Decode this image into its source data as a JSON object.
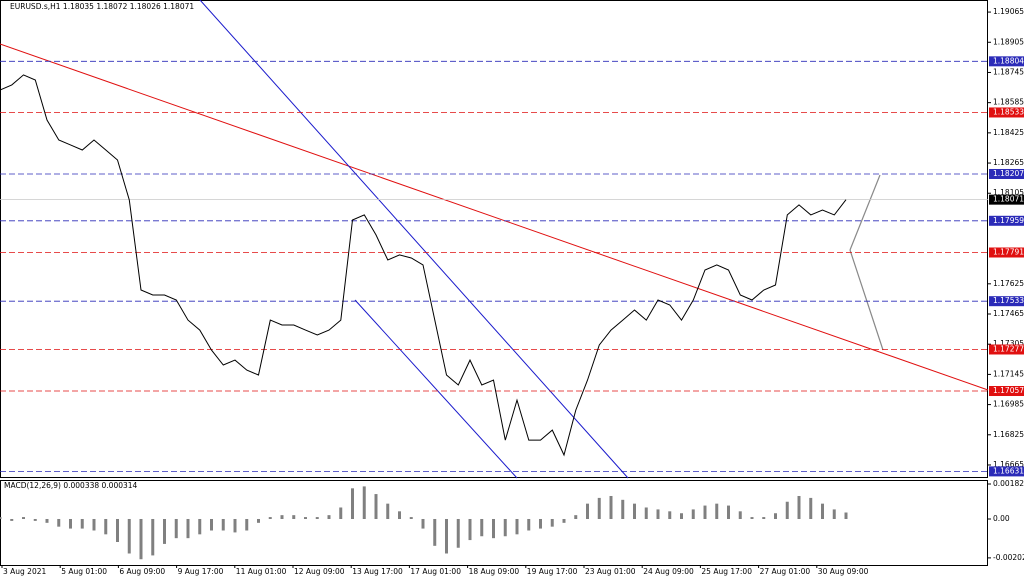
{
  "chart_data": [
    {
      "type": "line",
      "title": "EURUSD.s,H1 1.18035 1.18072 1.18026 1.18071",
      "x_labels": [
        "3 Aug 2021",
        "5 Aug 01:00",
        "6 Aug 09:00",
        "9 Aug 17:00",
        "11 Aug 01:00",
        "12 Aug 09:00",
        "13 Aug 17:00",
        "17 Aug 01:00",
        "18 Aug 09:00",
        "19 Aug 17:00",
        "23 Aug 01:00",
        "24 Aug 09:00",
        "25 Aug 17:00",
        "27 Aug 01:00",
        "30 Aug 09:00"
      ],
      "series": [
        {
          "color": "#000000",
          "values": [
            1.18652,
            1.18679,
            1.18732,
            1.18705,
            1.18493,
            1.18387,
            1.18361,
            1.18334,
            1.18387,
            1.18334,
            1.18281,
            1.18069,
            1.17592,
            1.17566,
            1.17566,
            1.17539,
            1.17433,
            1.1738,
            1.17274,
            1.17195,
            1.17221,
            1.17168,
            1.17142,
            1.17433,
            1.17407,
            1.17407,
            1.1738,
            1.17354,
            1.1738,
            1.17433,
            1.17963,
            1.1799,
            1.17884,
            1.17751,
            1.17778,
            1.17762,
            1.17725,
            1.17433,
            1.17142,
            1.17089,
            1.17221,
            1.17089,
            1.17115,
            1.16797,
            1.17009,
            1.16797,
            1.16797,
            1.1685,
            1.16718,
            1.16956,
            1.17115,
            1.17301,
            1.1738,
            1.17433,
            1.17486,
            1.17433,
            1.17539,
            1.17513,
            1.17433,
            1.17539,
            1.17698,
            1.17725,
            1.17698,
            1.17566,
            1.17539,
            1.17592,
            1.17619,
            1.1799,
            1.18043,
            1.1799,
            1.18016,
            1.1799,
            1.18071
          ]
        }
      ],
      "ylim": [
        1.16596,
        1.19129
      ],
      "yticks": [
        1.19065,
        1.18905,
        1.18745,
        1.18585,
        1.18425,
        1.18265,
        1.18105,
        1.17625,
        1.17465,
        1.17305,
        1.17145,
        1.16985,
        1.16825,
        1.16665
      ],
      "levels": [
        {
          "value": 1.18804,
          "color": "#2b2bb8"
        },
        {
          "value": 1.18533,
          "color": "#e01010"
        },
        {
          "value": 1.18207,
          "color": "#2b2bb8"
        },
        {
          "value": 1.18071,
          "color": "#000000"
        },
        {
          "value": 1.17959,
          "color": "#2b2bb8"
        },
        {
          "value": 1.17791,
          "color": "#e01010"
        },
        {
          "value": 1.17533,
          "color": "#2b2bb8"
        },
        {
          "value": 1.17277,
          "color": "#e01010"
        },
        {
          "value": 1.17057,
          "color": "#e01010"
        },
        {
          "value": 1.16631,
          "color": "#2b2bb8"
        }
      ]
    },
    {
      "type": "bar",
      "title": "MACD(12,26,9) 0.000338 0.000314",
      "color": "#808080",
      "values": [
        0.0001,
        -0.0001,
        0.0001,
        -0.0001,
        -0.0002,
        -0.0004,
        -0.0005,
        -0.0005,
        -0.0006,
        -0.0008,
        -0.0012,
        -0.0018,
        -0.0021,
        -0.0019,
        -0.0013,
        -0.001,
        -0.001,
        -0.0008,
        -0.0006,
        -0.0006,
        -0.0007,
        -0.0006,
        -0.0002,
        0.0001,
        0.0002,
        0.0002,
        0.0001,
        0.0001,
        0.0002,
        0.0006,
        0.0016,
        0.0017,
        0.0013,
        0.0008,
        0.0004,
        0.0001,
        -0.0005,
        -0.0014,
        -0.0018,
        -0.0015,
        -0.0011,
        -0.0009,
        -0.001,
        -0.0009,
        -0.0008,
        -0.0006,
        -0.0005,
        -0.0004,
        -0.0002,
        0.0002,
        0.0008,
        0.0011,
        0.0012,
        0.001,
        0.0008,
        0.0006,
        0.0005,
        0.0004,
        0.0003,
        0.0005,
        0.0007,
        0.0008,
        0.0007,
        0.0004,
        0.0001,
        0.0001,
        0.0003,
        0.0009,
        0.0012,
        0.0011,
        0.0008,
        0.0005,
        0.000338
      ],
      "ylim": [
        -0.0024,
        0.002034
      ],
      "yticks": [
        0.001825,
        {
          "value": 0,
          "label": "0.00"
        },
        -0.002029
      ]
    }
  ]
}
